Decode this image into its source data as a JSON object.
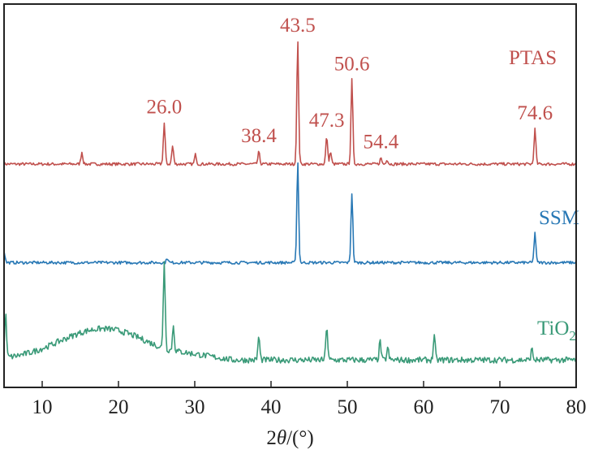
{
  "chart_data": {
    "type": "line",
    "title": "",
    "xlabel": "2θ/(°)",
    "xlabel_parts": {
      "pre": "2",
      "symbol": "θ",
      "post": "/(°)"
    },
    "ylabel": "",
    "xlim": [
      5,
      80
    ],
    "xticks": [
      10,
      20,
      30,
      40,
      50,
      60,
      70,
      80
    ],
    "y_axis_ticks": false,
    "grid": false,
    "legend": "none",
    "series": [
      {
        "name": "PTAS",
        "label_main": "PTAS",
        "label_sub": "",
        "color": "#c0504d",
        "baseline": 0.0,
        "noise": 0.12,
        "peaks": [
          {
            "x": 15.2,
            "height": 1.0
          },
          {
            "x": 26.0,
            "height": 3.4
          },
          {
            "x": 27.1,
            "height": 1.5
          },
          {
            "x": 30.1,
            "height": 0.8
          },
          {
            "x": 38.4,
            "height": 1.0
          },
          {
            "x": 43.5,
            "height": 10.2
          },
          {
            "x": 47.3,
            "height": 2.3
          },
          {
            "x": 47.8,
            "height": 1.0
          },
          {
            "x": 50.6,
            "height": 7.0
          },
          {
            "x": 54.4,
            "height": 0.5
          },
          {
            "x": 55.2,
            "height": 0.4
          },
          {
            "x": 74.6,
            "height": 2.9
          }
        ],
        "annotations": [
          "26.0",
          "38.4",
          "43.5",
          "47.3",
          "50.6",
          "54.4",
          "74.6"
        ]
      },
      {
        "name": "SSM",
        "label_main": "SSM",
        "label_sub": "",
        "color": "#2878b5",
        "baseline": -8.2,
        "noise": 0.12,
        "peaks": [
          {
            "x": 5.0,
            "height": 1.0
          },
          {
            "x": 26.4,
            "height": 0.4
          },
          {
            "x": 43.5,
            "height": 8.4
          },
          {
            "x": 50.6,
            "height": 5.8
          },
          {
            "x": 74.6,
            "height": 2.5
          }
        ],
        "annotations": []
      },
      {
        "name": "TiO2",
        "label_main": "TiO",
        "label_sub": "2",
        "color": "#3a9a78",
        "baseline": -16.3,
        "noise": 0.25,
        "hump": {
          "center": 18,
          "width": 8,
          "height": 2.6,
          "start": 5,
          "end": 26
        },
        "peaks": [
          {
            "x": 5.2,
            "height": 3.6
          },
          {
            "x": 26.0,
            "height": 7.4
          },
          {
            "x": 27.2,
            "height": 2.1
          },
          {
            "x": 38.4,
            "height": 2.0
          },
          {
            "x": 47.3,
            "height": 2.9
          },
          {
            "x": 54.3,
            "height": 1.6
          },
          {
            "x": 55.3,
            "height": 1.0
          },
          {
            "x": 61.4,
            "height": 2.0
          },
          {
            "x": 74.2,
            "height": 0.9
          }
        ],
        "annotations": []
      }
    ]
  }
}
